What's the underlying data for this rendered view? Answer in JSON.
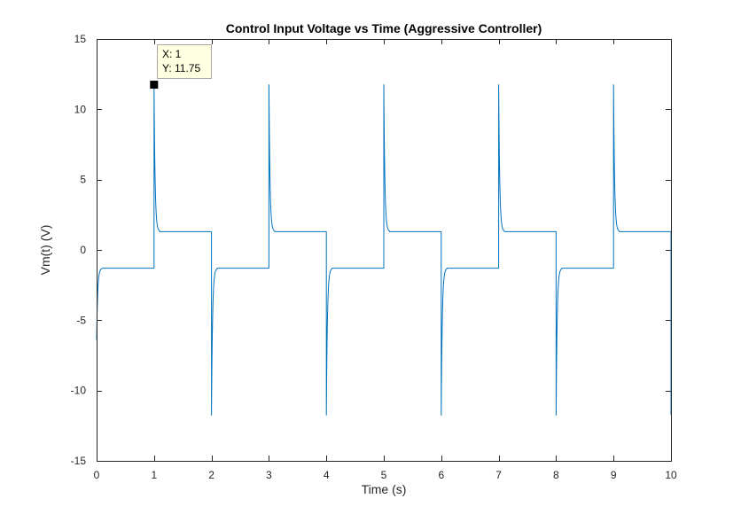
{
  "chart_data": {
    "type": "line",
    "title": "Control Input Voltage vs Time (Aggressive Controller)",
    "xlabel": "Time (s)",
    "ylabel": "Vm(t) (V)",
    "xlim": [
      0,
      10
    ],
    "ylim": [
      -15,
      15
    ],
    "xticks": [
      0,
      1,
      2,
      3,
      4,
      5,
      6,
      7,
      8,
      9,
      10
    ],
    "yticks": [
      -15,
      -10,
      -5,
      0,
      5,
      10,
      15
    ],
    "grid": false,
    "box": true,
    "line_color": "#0072BD",
    "series": [
      {
        "description_points": [
          {
            "x": 0,
            "y": -6.4
          },
          {
            "x": 0.1,
            "y": -1.3
          },
          {
            "x": 1,
            "y": -1.3
          },
          {
            "x": 1,
            "y": 11.75
          },
          {
            "x": 1.1,
            "y": 1.3
          },
          {
            "x": 2,
            "y": 1.3
          },
          {
            "x": 2,
            "y": -11.75
          },
          {
            "x": 2.1,
            "y": -1.3
          },
          {
            "x": 3,
            "y": -1.3
          },
          {
            "x": 3,
            "y": 11.75
          },
          {
            "x": 3.1,
            "y": 1.3
          },
          {
            "x": 4,
            "y": 1.3
          },
          {
            "x": 4,
            "y": -11.75
          },
          {
            "x": 4.1,
            "y": -1.3
          },
          {
            "x": 5,
            "y": -1.3
          },
          {
            "x": 5,
            "y": 11.75
          },
          {
            "x": 5.1,
            "y": 1.3
          },
          {
            "x": 6,
            "y": 1.3
          },
          {
            "x": 6,
            "y": -11.75
          },
          {
            "x": 6.1,
            "y": -1.3
          },
          {
            "x": 7,
            "y": -1.3
          },
          {
            "x": 7,
            "y": 11.75
          },
          {
            "x": 7.1,
            "y": 1.3
          },
          {
            "x": 8,
            "y": 1.3
          },
          {
            "x": 8,
            "y": -11.75
          },
          {
            "x": 8.1,
            "y": -1.3
          },
          {
            "x": 9,
            "y": -1.3
          },
          {
            "x": 9,
            "y": 11.75
          },
          {
            "x": 9.1,
            "y": 1.3
          },
          {
            "x": 10,
            "y": 1.3
          },
          {
            "x": 10,
            "y": -11.75
          }
        ]
      }
    ],
    "annotation": {
      "x_text": "X: 1",
      "y_text": "Y: 11.75",
      "x": 1,
      "y": 11.75
    }
  }
}
